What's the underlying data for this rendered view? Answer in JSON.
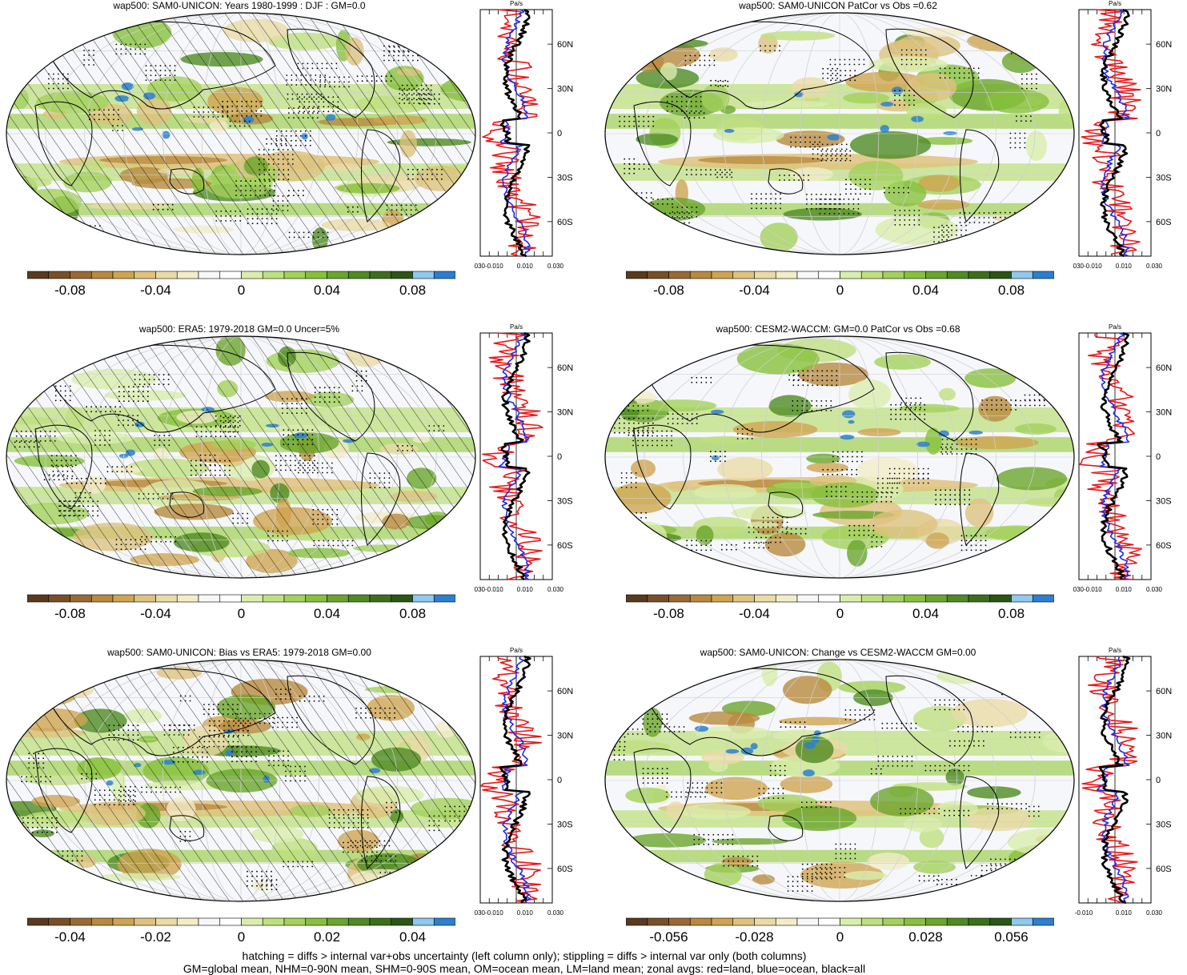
{
  "footnotes": [
    "hatching = diffs > internal var+obs uncertainty (left column only); stippling = diffs > internal var only (both columns)",
    "GM=global mean, NHM=0-90N mean, SHM=0-90S mean, OM=ocean mean, LM=land mean; zonal avgs: red=land, blue=ocean, black=all"
  ],
  "colormap": [
    "#5a3a1e",
    "#7a4f27",
    "#9a6a35",
    "#b9893f",
    "#cfa450",
    "#dfc27d",
    "#eadba6",
    "#f3ecc9",
    "#f7f7f7",
    "#ffffff",
    "#d9eead",
    "#bfe07f",
    "#a3d15b",
    "#87c13c",
    "#6aa52c",
    "#4f8b23",
    "#3c6f1c",
    "#2b5616",
    "#8fc9ee",
    "#2c7fd1"
  ],
  "panels": [
    {
      "title": "wap500: SAM0-UNICON: Years 1980-1999 : DJF : GM=0.0",
      "hatch": true,
      "stipple": true,
      "colorbar_ticks": [
        "-0.08",
        "-0.04",
        "0",
        "0.04",
        "0.08"
      ],
      "zonal": {
        "unit": "Pa/s",
        "lat_labels": [
          "60N",
          "30N",
          "0",
          "30S",
          "60S"
        ],
        "x_ticks": [
          "-0.030-0.010",
          "0.010",
          "0.030"
        ]
      }
    },
    {
      "title": "wap500: SAM0-UNICON PatCor vs Obs =0.62",
      "hatch": false,
      "stipple": true,
      "colorbar_ticks": [
        "-0.08",
        "-0.04",
        "0",
        "0.04",
        "0.08"
      ],
      "zonal": {
        "unit": "Pa/s",
        "lat_labels": [
          "60N",
          "30N",
          "0",
          "30S",
          "60S"
        ],
        "x_ticks": [
          "-0.030-0.010",
          "0.010",
          "0.030"
        ]
      }
    },
    {
      "title": "wap500: ERA5: 1979-2018 GM=0.0 Uncer=5%",
      "hatch": true,
      "stipple": true,
      "colorbar_ticks": [
        "-0.08",
        "-0.04",
        "0",
        "0.04",
        "0.08"
      ],
      "zonal": {
        "unit": "Pa/s",
        "lat_labels": [
          "60N",
          "30N",
          "0",
          "30S",
          "60S"
        ],
        "x_ticks": [
          "-0.030-0.010",
          "0.010",
          "0.030"
        ]
      }
    },
    {
      "title": "wap500: CESM2-WACCM: GM=0.0 PatCor vs Obs =0.68",
      "hatch": false,
      "stipple": true,
      "colorbar_ticks": [
        "-0.08",
        "-0.04",
        "0",
        "0.04",
        "0.08"
      ],
      "zonal": {
        "unit": "Pa/s",
        "lat_labels": [
          "60N",
          "30N",
          "0",
          "30S",
          "60S"
        ],
        "x_ticks": [
          "-0.030-0.010",
          "0.010",
          "0.030"
        ]
      }
    },
    {
      "title": "wap500: SAM0-UNICON: Bias vs ERA5: 1979-2018 GM=0.00",
      "hatch": true,
      "stipple": true,
      "colorbar_ticks": [
        "-0.04",
        "-0.02",
        "0",
        "0.02",
        "0.04"
      ],
      "zonal": {
        "unit": "Pa/s",
        "lat_labels": [
          "60N",
          "30N",
          "0",
          "30S",
          "60S"
        ],
        "x_ticks": [
          "-0.030-0.010",
          "0.010",
          "0.030"
        ]
      }
    },
    {
      "title": "wap500: SAM0-UNICON: Change vs CESM2-WACCM GM=0.00",
      "hatch": false,
      "stipple": true,
      "colorbar_ticks": [
        "-0.056",
        "-0.028",
        "0",
        "0.028",
        "0.056"
      ],
      "zonal": {
        "unit": "Pa/s",
        "lat_labels": [
          "60N",
          "30N",
          "0",
          "30S",
          "60S"
        ],
        "x_ticks": [
          "-0.010",
          "0.010",
          "0.030"
        ]
      }
    }
  ],
  "chart_data": [
    {
      "type": "heatmap",
      "title": "wap500: SAM0-UNICON: Years 1980-1999 : DJF : GM=0.0",
      "ylabel": "Pa/s",
      "yticks": [
        "60N",
        "30N",
        "0",
        "30S",
        "60S"
      ],
      "colorbar": [
        -0.08,
        -0.04,
        0,
        0.04,
        0.08
      ],
      "series": [
        {
          "name": "red=land"
        },
        {
          "name": "blue=ocean"
        },
        {
          "name": "black=all"
        }
      ]
    },
    {
      "type": "heatmap",
      "title": "wap500: SAM0-UNICON PatCor vs Obs =0.62",
      "ylabel": "Pa/s",
      "yticks": [
        "60N",
        "30N",
        "0",
        "30S",
        "60S"
      ],
      "colorbar": [
        -0.08,
        -0.04,
        0,
        0.04,
        0.08
      ]
    },
    {
      "type": "heatmap",
      "title": "wap500: ERA5: 1979-2018 GM=0.0 Uncer=5%",
      "ylabel": "Pa/s",
      "yticks": [
        "60N",
        "30N",
        "0",
        "30S",
        "60S"
      ],
      "colorbar": [
        -0.08,
        -0.04,
        0,
        0.04,
        0.08
      ]
    },
    {
      "type": "heatmap",
      "title": "wap500: CESM2-WACCM: GM=0.0 PatCor vs Obs =0.68",
      "ylabel": "Pa/s",
      "yticks": [
        "60N",
        "30N",
        "0",
        "30S",
        "60S"
      ],
      "colorbar": [
        -0.08,
        -0.04,
        0,
        0.04,
        0.08
      ]
    },
    {
      "type": "heatmap",
      "title": "wap500: SAM0-UNICON: Bias vs ERA5: 1979-2018 GM=0.00",
      "ylabel": "Pa/s",
      "yticks": [
        "60N",
        "30N",
        "0",
        "30S",
        "60S"
      ],
      "colorbar": [
        -0.04,
        -0.02,
        0,
        0.02,
        0.04
      ]
    },
    {
      "type": "heatmap",
      "title": "wap500: SAM0-UNICON: Change vs CESM2-WACCM GM=0.00",
      "ylabel": "Pa/s",
      "yticks": [
        "60N",
        "30N",
        "0",
        "30S",
        "60S"
      ],
      "colorbar": [
        -0.056,
        -0.028,
        0,
        0.028,
        0.056
      ]
    }
  ]
}
